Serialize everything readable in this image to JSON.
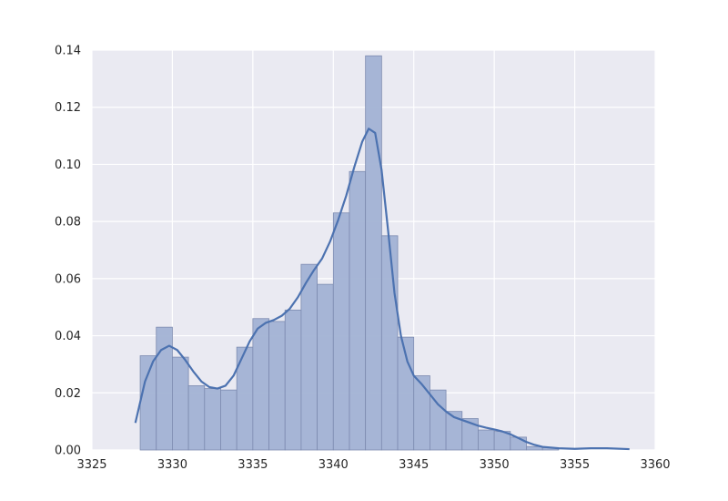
{
  "chart_data": {
    "type": "bar",
    "title": "",
    "xlabel": "",
    "ylabel": "",
    "xlim": [
      3325,
      3360
    ],
    "ylim": [
      0,
      0.14
    ],
    "x_ticks": [
      3325,
      3330,
      3335,
      3340,
      3345,
      3350,
      3355,
      3360
    ],
    "y_ticks": [
      0.0,
      0.02,
      0.04,
      0.06,
      0.08,
      0.1,
      0.12,
      0.14
    ],
    "x_tick_labels": [
      "3325",
      "3330",
      "3335",
      "3340",
      "3345",
      "3350",
      "3355",
      "3360"
    ],
    "y_tick_labels": [
      "0.00",
      "0.02",
      "0.04",
      "0.06",
      "0.08",
      "0.10",
      "0.12",
      "0.14"
    ],
    "grid": true,
    "legend": "none",
    "histogram": {
      "bin_start": 3328.0,
      "bin_width": 1.0,
      "values": [
        0.033,
        0.043,
        0.0325,
        0.0225,
        0.0215,
        0.021,
        0.036,
        0.046,
        0.045,
        0.049,
        0.065,
        0.058,
        0.083,
        0.0975,
        0.138,
        0.075,
        0.0395,
        0.026,
        0.021,
        0.0135,
        0.011,
        0.007,
        0.0065,
        0.0045,
        0.0012,
        0.0008
      ]
    },
    "kde": {
      "x": [
        3327.7,
        3328.3,
        3328.8,
        3329.3,
        3329.8,
        3330.3,
        3330.8,
        3331.3,
        3331.8,
        3332.3,
        3332.8,
        3333.3,
        3333.8,
        3334.3,
        3334.8,
        3335.3,
        3335.8,
        3336.3,
        3336.8,
        3337.3,
        3337.8,
        3338.3,
        3338.8,
        3339.3,
        3339.8,
        3340.3,
        3340.8,
        3341.3,
        3341.8,
        3342.2,
        3342.6,
        3343.0,
        3343.4,
        3343.8,
        3344.2,
        3344.6,
        3345.0,
        3345.5,
        3346.0,
        3346.5,
        3347.0,
        3347.5,
        3348.0,
        3348.5,
        3349.0,
        3349.5,
        3350.0,
        3350.5,
        3351.0,
        3351.5,
        3352.0,
        3352.5,
        3353.0,
        3354.0,
        3355.0,
        3356.0,
        3357.0,
        3358.4
      ],
      "y": [
        0.0095,
        0.024,
        0.031,
        0.035,
        0.0365,
        0.035,
        0.0315,
        0.0275,
        0.024,
        0.022,
        0.0215,
        0.0225,
        0.026,
        0.032,
        0.038,
        0.0425,
        0.0445,
        0.0455,
        0.047,
        0.0495,
        0.0535,
        0.0585,
        0.063,
        0.067,
        0.073,
        0.0805,
        0.089,
        0.099,
        0.108,
        0.1125,
        0.111,
        0.098,
        0.077,
        0.055,
        0.04,
        0.031,
        0.026,
        0.023,
        0.0195,
        0.016,
        0.0135,
        0.0115,
        0.0105,
        0.0095,
        0.0085,
        0.0078,
        0.0072,
        0.0065,
        0.0055,
        0.0042,
        0.0028,
        0.0018,
        0.0011,
        0.0006,
        0.0004,
        0.0006,
        0.0006,
        0.0003
      ]
    },
    "colors": {
      "background": "#eaeaf2",
      "grid": "#ffffff",
      "bar_fill": "#a2b2d4",
      "bar_edge": "#7d8bb0",
      "kde_line": "#4c72b0",
      "text": "#262626"
    }
  }
}
